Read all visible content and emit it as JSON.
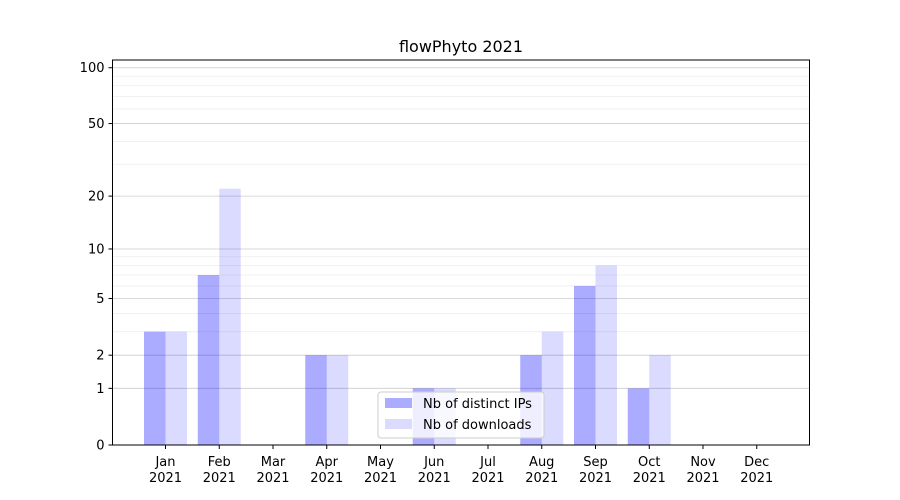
{
  "chart_data": {
    "type": "bar",
    "title": "flowPhyto 2021",
    "xlabel": "",
    "ylabel": "",
    "y_scale": "log(1+y)",
    "ylim": [
      0,
      110
    ],
    "y_ticks": [
      0,
      1,
      2,
      5,
      10,
      20,
      50,
      100
    ],
    "categories": [
      [
        "Jan",
        "2021"
      ],
      [
        "Feb",
        "2021"
      ],
      [
        "Mar",
        "2021"
      ],
      [
        "Apr",
        "2021"
      ],
      [
        "May",
        "2021"
      ],
      [
        "Jun",
        "2021"
      ],
      [
        "Jul",
        "2021"
      ],
      [
        "Aug",
        "2021"
      ],
      [
        "Sep",
        "2021"
      ],
      [
        "Oct",
        "2021"
      ],
      [
        "Nov",
        "2021"
      ],
      [
        "Dec",
        "2021"
      ]
    ],
    "series": [
      {
        "name": "Nb of distinct IPs",
        "color": "#0000ff",
        "opacity": 0.33,
        "values": [
          3,
          7,
          0,
          2,
          0,
          1,
          0,
          2,
          6,
          1,
          0,
          0
        ]
      },
      {
        "name": "Nb of downloads",
        "color": "#0000ff",
        "opacity": 0.14,
        "values": [
          3,
          22,
          0,
          2,
          0,
          1,
          0,
          3,
          8,
          2,
          0,
          0
        ]
      }
    ],
    "grid": true,
    "legend_position": "bottom-center"
  }
}
